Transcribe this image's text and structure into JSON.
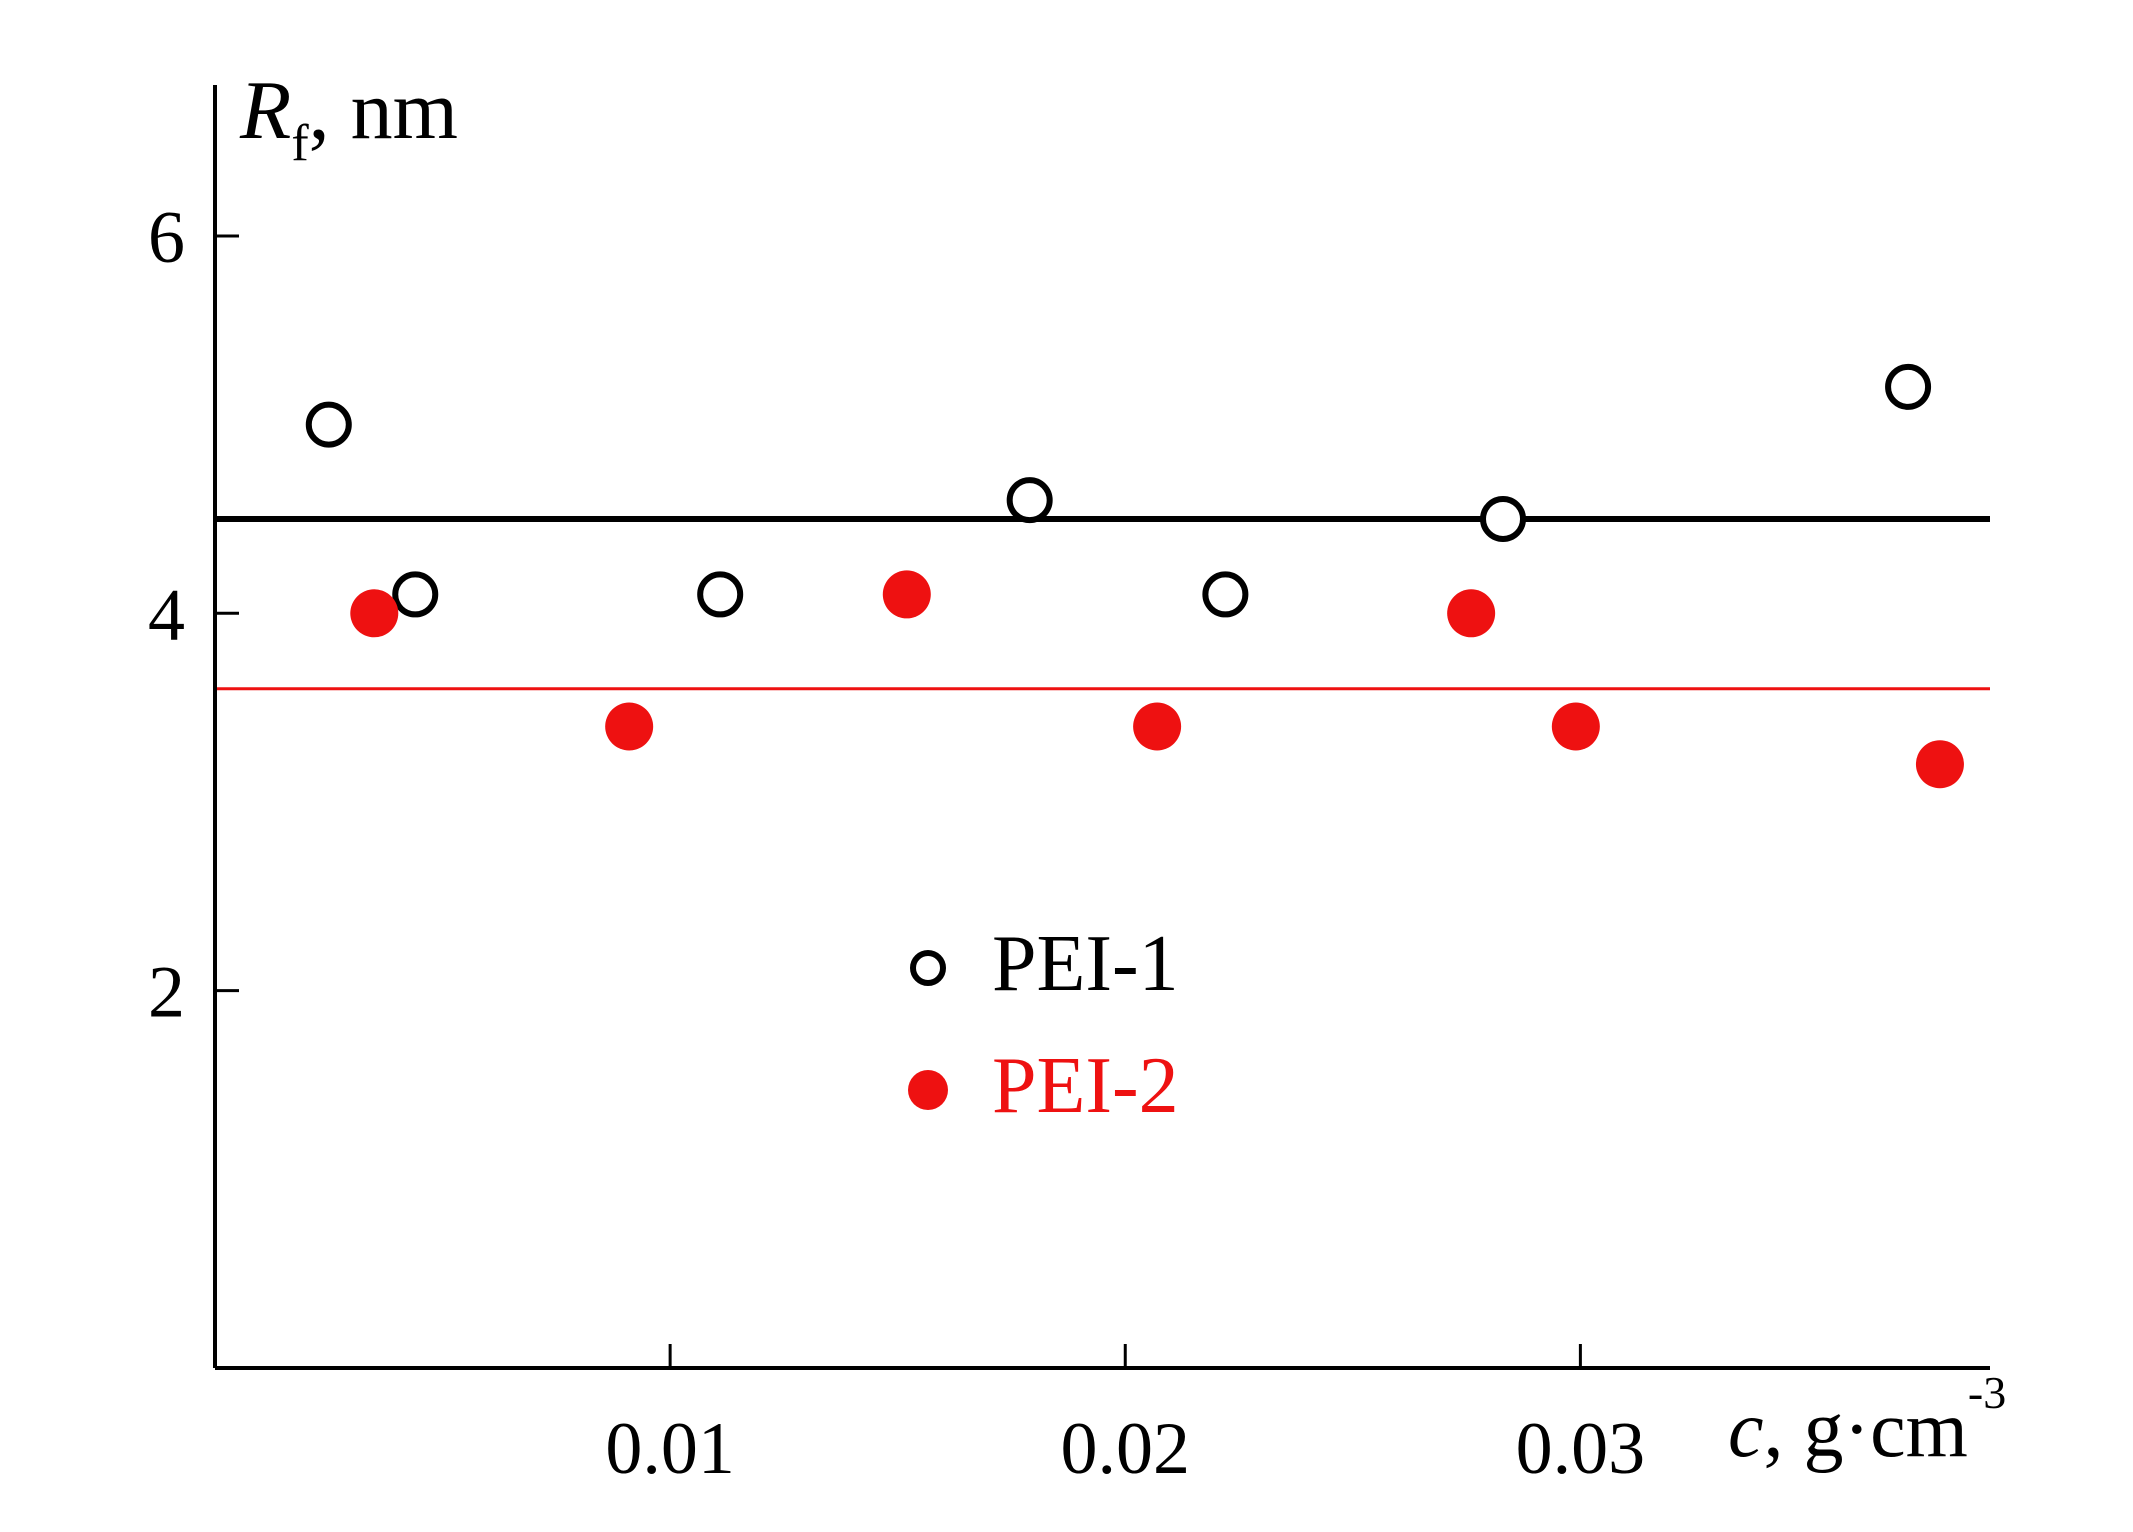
{
  "chart_data": {
    "type": "scatter",
    "ylabel": {
      "symbol": "R",
      "subscript": "f",
      "rest": ", nm"
    },
    "xlabel": {
      "symbol": "c",
      "rest": ", g·cm",
      "superscript": "-3"
    },
    "xlim": [
      0,
      0.039
    ],
    "ylim": [
      0,
      6.8
    ],
    "xticks": [
      0.01,
      0.02,
      0.03
    ],
    "xtick_labels": [
      "0.01",
      "0.02",
      "0.03"
    ],
    "yticks": [
      2,
      4,
      6
    ],
    "ytick_labels": [
      "2",
      "4",
      "6"
    ],
    "grid": false,
    "legend_position": "center",
    "series": [
      {
        "name": "PEI-1",
        "marker": "open-circle",
        "color": "#000000",
        "x": [
          0.0025,
          0.0044,
          0.0111,
          0.0179,
          0.0222,
          0.0283,
          0.0372
        ],
        "y": [
          5.0,
          4.1,
          4.1,
          4.6,
          4.1,
          4.5,
          5.2
        ],
        "mean_line": 4.5
      },
      {
        "name": "PEI-2",
        "marker": "filled-circle",
        "color": "#ee1111",
        "x": [
          0.0035,
          0.0091,
          0.0152,
          0.0207,
          0.0276,
          0.0299,
          0.0379
        ],
        "y": [
          4.0,
          3.4,
          4.1,
          3.4,
          4.0,
          3.4,
          3.2
        ],
        "mean_line": 3.6
      }
    ]
  }
}
